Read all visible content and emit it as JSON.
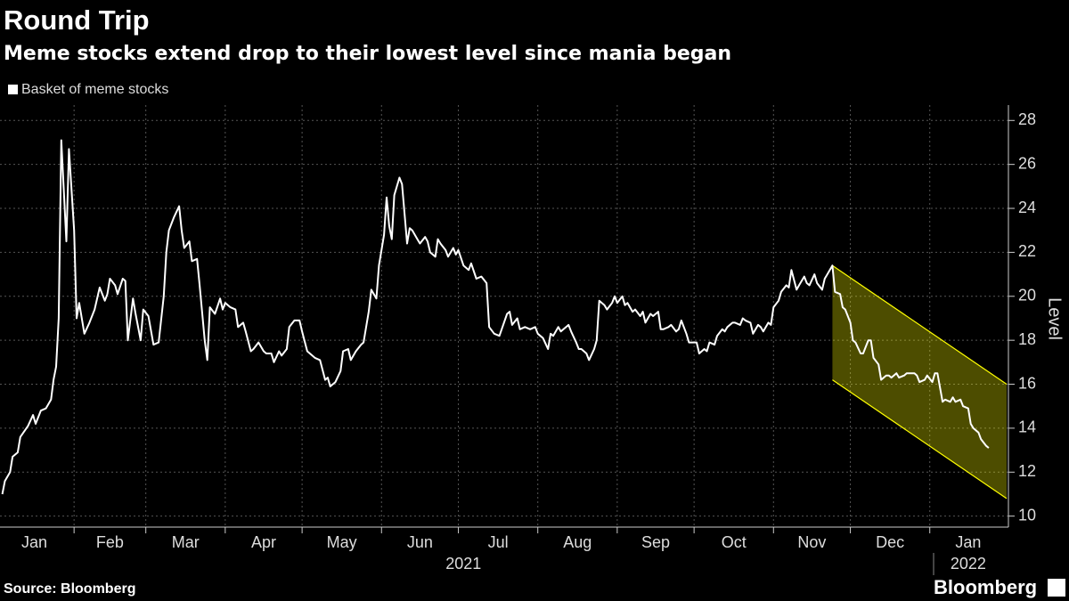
{
  "chart_data": {
    "type": "line",
    "title": "Round Trip",
    "subtitle": "Meme stocks extend drop to their lowest level since mania began",
    "y_label": "Level",
    "source": "Source: Bloomberg",
    "brand": "Bloomberg",
    "grid": true,
    "xlim": [
      "2021-01-01",
      "2022-01-31"
    ],
    "ylim": [
      9.5,
      28.7
    ],
    "yticks": [
      10,
      12,
      14,
      16,
      18,
      20,
      22,
      24,
      26,
      28
    ],
    "xticks": [
      {
        "value": "2021-01-01",
        "label": "Jan"
      },
      {
        "value": "2021-02-01",
        "label": "Feb"
      },
      {
        "value": "2021-03-01",
        "label": "Mar"
      },
      {
        "value": "2021-04-01",
        "label": "Apr"
      },
      {
        "value": "2021-05-01",
        "label": "May"
      },
      {
        "value": "2021-06-01",
        "label": "Jun"
      },
      {
        "value": "2021-07-01",
        "label": "Jul"
      },
      {
        "value": "2021-08-01",
        "label": "Aug"
      },
      {
        "value": "2021-09-01",
        "label": "Sep"
      },
      {
        "value": "2021-10-01",
        "label": "Oct"
      },
      {
        "value": "2021-11-01",
        "label": "Nov"
      },
      {
        "value": "2021-12-01",
        "label": "Dec"
      },
      {
        "value": "2022-01-01",
        "label": "Jan"
      }
    ],
    "year_labels": [
      {
        "value": "2021-07-03",
        "label": "2021"
      },
      {
        "value": "2022-01-16",
        "label": "2022"
      }
    ],
    "channel": {
      "x": [
        "2021-11-24",
        "2022-01-31"
      ],
      "upper": [
        21.4,
        16.0
      ],
      "lower": [
        16.2,
        10.8
      ],
      "color": "#ffff00"
    },
    "x": [
      "2021-01-04",
      "2021-01-05",
      "2021-01-07",
      "2021-01-08",
      "2021-01-10",
      "2021-01-11",
      "2021-01-14",
      "2021-01-16",
      "2021-01-17",
      "2021-01-19",
      "2021-01-21",
      "2021-01-23",
      "2021-01-24",
      "2021-01-25",
      "2021-01-26",
      "2021-01-27",
      "2021-01-29",
      "2021-01-30",
      "2021-02-01",
      "2021-02-02",
      "2021-02-03",
      "2021-02-05",
      "2021-02-07",
      "2021-02-09",
      "2021-02-11",
      "2021-02-13",
      "2021-02-14",
      "2021-02-15",
      "2021-02-17",
      "2021-02-18",
      "2021-02-20",
      "2021-02-21",
      "2021-02-22",
      "2021-02-24",
      "2021-02-25",
      "2021-02-27",
      "2021-02-28",
      "2021-03-02",
      "2021-03-04",
      "2021-03-06",
      "2021-03-08",
      "2021-03-09",
      "2021-03-10",
      "2021-03-12",
      "2021-03-14",
      "2021-03-15",
      "2021-03-16",
      "2021-03-18",
      "2021-03-19",
      "2021-03-21",
      "2021-03-22",
      "2021-03-24",
      "2021-03-25",
      "2021-03-26",
      "2021-03-28",
      "2021-03-30",
      "2021-03-31",
      "2021-04-01",
      "2021-04-03",
      "2021-04-05",
      "2021-04-06",
      "2021-04-08",
      "2021-04-09",
      "2021-04-11",
      "2021-04-12",
      "2021-04-14",
      "2021-04-16",
      "2021-04-17",
      "2021-04-19",
      "2021-04-20",
      "2021-04-22",
      "2021-04-23",
      "2021-04-25",
      "2021-04-26",
      "2021-04-28",
      "2021-04-30",
      "2021-05-01",
      "2021-05-03",
      "2021-05-05",
      "2021-05-06",
      "2021-05-08",
      "2021-05-10",
      "2021-05-11",
      "2021-05-12",
      "2021-05-14",
      "2021-05-16",
      "2021-05-17",
      "2021-05-19",
      "2021-05-20",
      "2021-05-22",
      "2021-05-24",
      "2021-05-25",
      "2021-05-27",
      "2021-05-28",
      "2021-05-30",
      "2021-05-31",
      "2021-06-02",
      "2021-06-03",
      "2021-06-04",
      "2021-06-05",
      "2021-06-06",
      "2021-06-08",
      "2021-06-09",
      "2021-06-11",
      "2021-06-12",
      "2021-06-13",
      "2021-06-15",
      "2021-06-16",
      "2021-06-18",
      "2021-06-19",
      "2021-06-20",
      "2021-06-22",
      "2021-06-23",
      "2021-06-24",
      "2021-06-26",
      "2021-06-27",
      "2021-06-29",
      "2021-06-30",
      "2021-07-01",
      "2021-07-03",
      "2021-07-05",
      "2021-07-06",
      "2021-07-08",
      "2021-07-10",
      "2021-07-12",
      "2021-07-13",
      "2021-07-15",
      "2021-07-17",
      "2021-07-20",
      "2021-07-21",
      "2021-07-22",
      "2021-07-24",
      "2021-07-25",
      "2021-07-27",
      "2021-07-29",
      "2021-07-31",
      "2021-08-01",
      "2021-08-03",
      "2021-08-05",
      "2021-08-06",
      "2021-08-07",
      "2021-08-09",
      "2021-08-10",
      "2021-08-11",
      "2021-08-13",
      "2021-08-14",
      "2021-08-16",
      "2021-08-17",
      "2021-08-18",
      "2021-08-20",
      "2021-08-21",
      "2021-08-23",
      "2021-08-24",
      "2021-08-25",
      "2021-08-27",
      "2021-08-28",
      "2021-08-30",
      "2021-08-31",
      "2021-09-01",
      "2021-09-03",
      "2021-09-04",
      "2021-09-05",
      "2021-09-07",
      "2021-09-08",
      "2021-09-10",
      "2021-09-11",
      "2021-09-12",
      "2021-09-14",
      "2021-09-15",
      "2021-09-17",
      "2021-09-18",
      "2021-09-19",
      "2021-09-21",
      "2021-09-22",
      "2021-09-24",
      "2021-09-25",
      "2021-09-26",
      "2021-09-28",
      "2021-09-29",
      "2021-10-01",
      "2021-10-02",
      "2021-10-03",
      "2021-10-05",
      "2021-10-06",
      "2021-10-07",
      "2021-10-09",
      "2021-10-10",
      "2021-10-12",
      "2021-10-13",
      "2021-10-14",
      "2021-10-16",
      "2021-10-17",
      "2021-10-19",
      "2021-10-20",
      "2021-10-21",
      "2021-10-23",
      "2021-10-24",
      "2021-10-26",
      "2021-10-27",
      "2021-10-28",
      "2021-10-30",
      "2021-10-31",
      "2021-11-01",
      "2021-11-03",
      "2021-11-04",
      "2021-11-06",
      "2021-11-07",
      "2021-11-08",
      "2021-11-10",
      "2021-11-11",
      "2021-11-13",
      "2021-11-14",
      "2021-11-15",
      "2021-11-17",
      "2021-11-18",
      "2021-11-20",
      "2021-11-21",
      "2021-11-22",
      "2021-11-24",
      "2021-11-25",
      "2021-11-27",
      "2021-11-28",
      "2021-11-29",
      "2021-12-01",
      "2021-12-02",
      "2021-12-03",
      "2021-12-05",
      "2021-12-06",
      "2021-12-08",
      "2021-12-09",
      "2021-12-10",
      "2021-12-12",
      "2021-12-13",
      "2021-12-15",
      "2021-12-16",
      "2021-12-17",
      "2021-12-19",
      "2021-12-20",
      "2021-12-22",
      "2021-12-23",
      "2021-12-24",
      "2021-12-26",
      "2021-12-27",
      "2021-12-28",
      "2021-12-30",
      "2021-12-31",
      "2022-01-02",
      "2022-01-03",
      "2022-01-04",
      "2022-01-06",
      "2022-01-07",
      "2022-01-09",
      "2022-01-10",
      "2022-01-11",
      "2022-01-13",
      "2022-01-14",
      "2022-01-16",
      "2022-01-17",
      "2022-01-18",
      "2022-01-20",
      "2022-01-21",
      "2022-01-23",
      "2022-01-24"
    ],
    "series": [
      {
        "name": "Basket of meme stocks",
        "color": "#ffffff",
        "values": [
          11.0,
          11.6,
          12.0,
          12.7,
          12.9,
          13.6,
          14.1,
          14.6,
          14.2,
          14.8,
          14.9,
          15.3,
          16.2,
          16.8,
          19.0,
          27.1,
          22.5,
          26.7,
          23.0,
          19.0,
          19.7,
          18.3,
          18.8,
          19.4,
          20.4,
          19.8,
          20.1,
          20.8,
          20.5,
          20.1,
          20.8,
          20.7,
          18.0,
          19.9,
          19.2,
          18.0,
          19.4,
          19.1,
          17.8,
          17.9,
          20.0,
          22.0,
          23.0,
          23.6,
          24.1,
          23.0,
          22.2,
          22.5,
          21.6,
          21.7,
          20.5,
          18.0,
          17.1,
          19.5,
          19.2,
          19.9,
          19.4,
          19.7,
          19.5,
          19.4,
          18.6,
          18.8,
          18.4,
          17.5,
          17.6,
          17.9,
          17.5,
          17.4,
          17.4,
          17.0,
          17.5,
          17.3,
          17.6,
          18.6,
          18.9,
          18.9,
          18.4,
          17.5,
          17.3,
          17.2,
          17.1,
          16.2,
          16.3,
          15.9,
          16.1,
          16.6,
          17.5,
          17.6,
          17.1,
          17.5,
          17.8,
          17.9,
          19.3,
          20.3,
          19.9,
          21.4,
          22.8,
          24.5,
          23.2,
          22.6,
          24.6,
          25.4,
          25.1,
          22.4,
          23.1,
          23.0,
          22.6,
          22.4,
          22.7,
          22.5,
          22.0,
          21.8,
          22.6,
          22.4,
          22.1,
          21.8,
          22.2,
          21.9,
          22.1,
          21.4,
          21.2,
          21.5,
          20.8,
          20.9,
          20.6,
          18.6,
          18.3,
          18.2,
          19.2,
          19.3,
          18.7,
          19.0,
          18.5,
          18.6,
          18.5,
          18.6,
          18.3,
          18.1,
          17.6,
          18.3,
          18.2,
          18.6,
          18.4,
          18.5,
          18.7,
          18.4,
          17.9,
          17.6,
          17.6,
          17.4,
          17.1,
          17.6,
          18.0,
          19.8,
          19.6,
          19.4,
          19.7,
          20.0,
          19.7,
          20.0,
          19.6,
          19.7,
          19.3,
          19.4,
          19.1,
          19.3,
          18.8,
          19.2,
          19.1,
          19.3,
          18.5,
          18.5,
          18.6,
          18.7,
          18.4,
          18.5,
          18.9,
          18.3,
          17.9,
          17.9,
          17.9,
          17.4,
          17.6,
          17.5,
          17.9,
          17.8,
          18.2,
          18.5,
          18.4,
          18.6,
          18.8,
          18.8,
          18.7,
          19.0,
          18.9,
          18.8,
          18.3,
          18.7,
          18.6,
          18.4,
          18.8,
          18.7,
          19.5,
          19.8,
          20.2,
          20.5,
          20.4,
          21.2,
          20.3,
          20.5,
          20.9,
          20.6,
          20.5,
          21.0,
          20.6,
          20.3,
          20.8,
          21.0,
          21.4,
          20.2,
          20.1,
          19.5,
          19.4,
          18.8,
          18.0,
          17.9,
          17.4,
          17.4,
          18.0,
          18.0,
          17.2,
          16.9,
          16.2,
          16.4,
          16.4,
          16.3,
          16.5,
          16.3,
          16.4,
          16.5,
          16.5,
          16.5,
          16.4,
          16.1,
          16.2,
          16.4,
          16.1,
          16.5,
          16.5,
          15.2,
          15.3,
          15.2,
          15.4,
          15.2,
          15.3,
          15.0,
          14.9,
          14.2,
          14.0,
          13.8,
          13.5,
          13.2,
          13.1
        ]
      }
    ]
  }
}
